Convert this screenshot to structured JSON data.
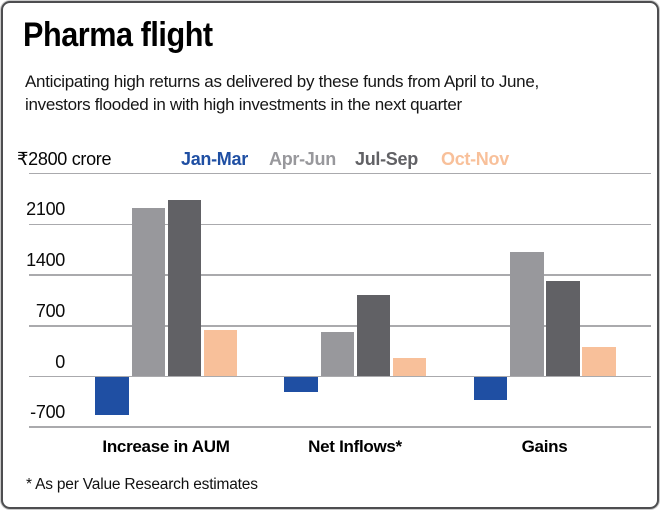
{
  "title": "Pharma flight",
  "subtitle": "Anticipating high returns as delivered by these funds from April to June, investors flooded in with high investments in the next quarter",
  "unit_label": "₹2800 crore",
  "footnote": "* As per Value Research estimates",
  "colors": {
    "jan_mar": "#1f4fa3",
    "apr_jun": "#98989c",
    "jul_sep": "#616165",
    "oct_nov": "#f8c09a",
    "gridline": "#aaaaad",
    "border": "#4d4e50",
    "text": "#111111"
  },
  "chart_data": {
    "type": "bar",
    "title": "Pharma flight",
    "unit": "₹ crore",
    "categories": [
      "Increase in AUM",
      "Net Inflows*",
      "Gains"
    ],
    "series": [
      {
        "name": "Jan-Mar",
        "color": "#1f4fa3",
        "values": [
          -530,
          -210,
          -320
        ]
      },
      {
        "name": "Apr-Jun",
        "color": "#98989c",
        "values": [
          2330,
          610,
          1720
        ]
      },
      {
        "name": "Jul-Sep",
        "color": "#616165",
        "values": [
          2440,
          1120,
          1320
        ]
      },
      {
        "name": "Oct-Nov",
        "color": "#f8c09a",
        "values": [
          645,
          250,
          405
        ]
      }
    ],
    "y_tick_labels": [
      2100,
      1400,
      700,
      0,
      -700
    ],
    "y_gridlines": [
      2800,
      2100,
      1400,
      700,
      0,
      -700
    ],
    "ylim": [
      -700,
      2800
    ],
    "grid": true,
    "legend_position": "top"
  }
}
